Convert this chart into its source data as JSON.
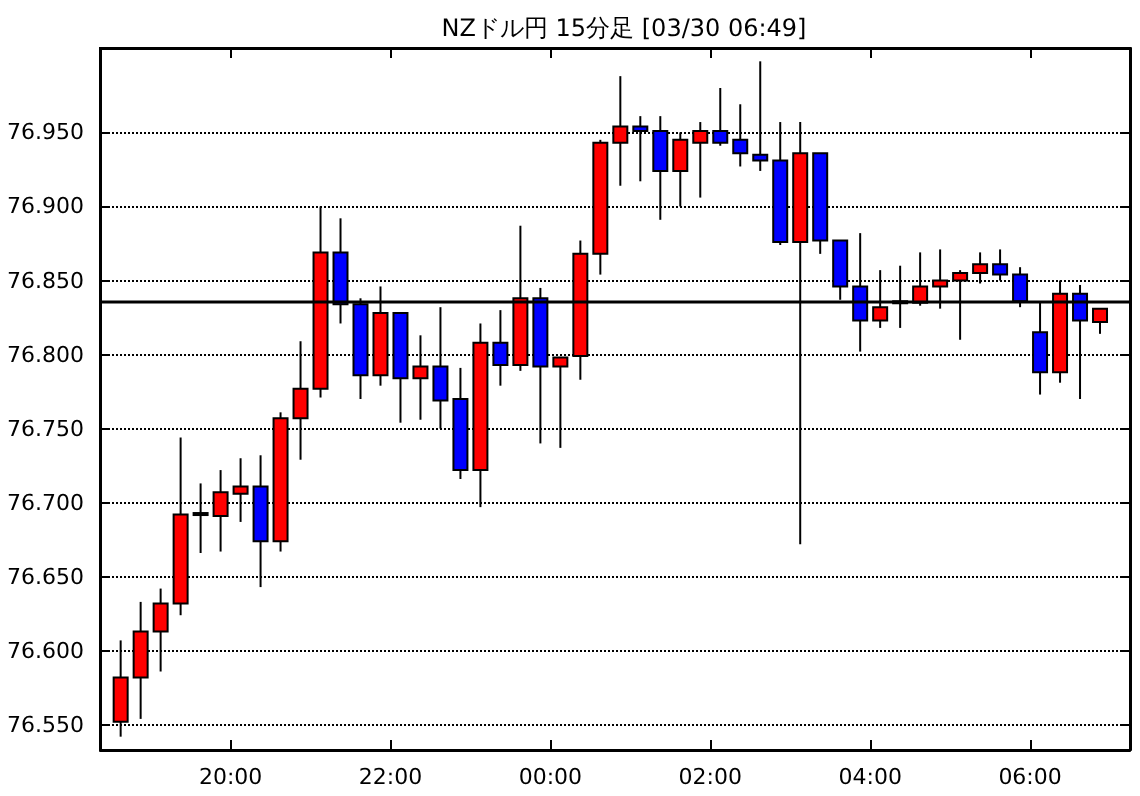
{
  "chart_data": {
    "type": "candlestick",
    "title": "NZドル円 15分足 [03/30 06:49]",
    "x": [
      "--03-29T18:37:30",
      "--03-29T18:52:30",
      "--03-29T19:07:30",
      "--03-29T19:22:30",
      "--03-29T19:37:30",
      "--03-29T19:52:30",
      "--03-29T20:07:30",
      "--03-29T20:22:30",
      "--03-29T20:37:30",
      "--03-29T20:52:30",
      "--03-29T21:07:30",
      "--03-29T21:22:30",
      "--03-29T21:37:30",
      "--03-29T21:52:30",
      "--03-29T22:07:30",
      "--03-29T22:22:30",
      "--03-29T22:37:30",
      "--03-29T22:52:30",
      "--03-29T23:07:30",
      "--03-29T23:22:30",
      "--03-29T23:37:30",
      "--03-29T23:52:30",
      "--03-30T00:07:30",
      "--03-30T00:22:30",
      "--03-30T00:37:30",
      "--03-30T00:52:30",
      "--03-30T01:07:30",
      "--03-30T01:22:30",
      "--03-30T01:37:30",
      "--03-30T01:52:30",
      "--03-30T02:07:30",
      "--03-30T02:22:30",
      "--03-30T02:37:30",
      "--03-30T02:52:30",
      "--03-30T03:07:30",
      "--03-30T03:22:30",
      "--03-30T03:37:30",
      "--03-30T03:52:30",
      "--03-30T04:07:30",
      "--03-30T04:22:30",
      "--03-30T04:37:30",
      "--03-30T04:52:30",
      "--03-30T05:07:30",
      "--03-30T05:22:30",
      "--03-30T05:37:30",
      "--03-30T05:52:30",
      "--03-30T06:07:30",
      "--03-30T06:22:30",
      "--03-30T06:37:30",
      "--03-30T06:52:30"
    ],
    "ohlc": [
      [
        76.552,
        76.607,
        76.542,
        76.582
      ],
      [
        76.582,
        76.633,
        76.554,
        76.613
      ],
      [
        76.613,
        76.642,
        76.586,
        76.632
      ],
      [
        76.632,
        76.744,
        76.624,
        76.692
      ],
      [
        76.692,
        76.713,
        76.666,
        76.693
      ],
      [
        76.691,
        76.722,
        76.667,
        76.707
      ],
      [
        76.706,
        76.73,
        76.687,
        76.711
      ],
      [
        76.711,
        76.732,
        76.643,
        76.674
      ],
      [
        76.674,
        76.761,
        76.667,
        76.757
      ],
      [
        76.757,
        76.809,
        76.729,
        76.777
      ],
      [
        76.777,
        76.9,
        76.771,
        76.869
      ],
      [
        76.869,
        76.892,
        76.821,
        76.834
      ],
      [
        76.834,
        76.838,
        76.77,
        76.786
      ],
      [
        76.786,
        76.846,
        76.779,
        76.828
      ],
      [
        76.828,
        76.828,
        76.754,
        76.784
      ],
      [
        76.784,
        76.813,
        76.756,
        76.792
      ],
      [
        76.792,
        76.832,
        76.75,
        76.769
      ],
      [
        76.77,
        76.791,
        76.716,
        76.722
      ],
      [
        76.722,
        76.821,
        76.697,
        76.808
      ],
      [
        76.808,
        76.83,
        76.779,
        76.793
      ],
      [
        76.793,
        76.887,
        76.789,
        76.838
      ],
      [
        76.838,
        76.845,
        76.74,
        76.792
      ],
      [
        76.792,
        76.798,
        76.737,
        76.798
      ],
      [
        76.799,
        76.877,
        76.783,
        76.868
      ],
      [
        76.868,
        76.945,
        76.854,
        76.943
      ],
      [
        76.943,
        76.988,
        76.914,
        76.954
      ],
      [
        76.954,
        76.961,
        76.917,
        76.951
      ],
      [
        76.951,
        76.961,
        76.891,
        76.924
      ],
      [
        76.924,
        76.95,
        76.9,
        76.945
      ],
      [
        76.943,
        76.957,
        76.906,
        76.951
      ],
      [
        76.951,
        76.98,
        76.941,
        76.943
      ],
      [
        76.945,
        76.969,
        76.927,
        76.936
      ],
      [
        76.935,
        76.998,
        76.924,
        76.931
      ],
      [
        76.931,
        76.957,
        76.874,
        76.876
      ],
      [
        76.876,
        76.957,
        76.672,
        76.936
      ],
      [
        76.936,
        76.936,
        76.868,
        76.877
      ],
      [
        76.877,
        76.877,
        76.837,
        76.846
      ],
      [
        76.846,
        76.882,
        76.802,
        76.823
      ],
      [
        76.823,
        76.857,
        76.818,
        76.832
      ],
      [
        76.836,
        76.86,
        76.818,
        76.836
      ],
      [
        76.835,
        76.869,
        76.833,
        76.846
      ],
      [
        76.846,
        76.871,
        76.831,
        76.85
      ],
      [
        76.85,
        76.857,
        76.81,
        76.855
      ],
      [
        76.855,
        76.869,
        76.848,
        76.861
      ],
      [
        76.861,
        76.871,
        76.85,
        76.854
      ],
      [
        76.854,
        76.859,
        76.832,
        76.836
      ],
      [
        76.815,
        76.836,
        76.773,
        76.788
      ],
      [
        76.788,
        76.85,
        76.781,
        76.841
      ],
      [
        76.841,
        76.847,
        76.77,
        76.823
      ],
      [
        76.822,
        76.831,
        76.814,
        76.831
      ]
    ],
    "colors": [
      "#ff0000",
      "#ff0000",
      "#ff0000",
      "#ff0000",
      "#ff0000",
      "#ff0000",
      "#ff0000",
      "#0000ff",
      "#ff0000",
      "#ff0000",
      "#ff0000",
      "#0000ff",
      "#0000ff",
      "#ff0000",
      "#0000ff",
      "#ff0000",
      "#0000ff",
      "#0000ff",
      "#ff0000",
      "#0000ff",
      "#ff0000",
      "#0000ff",
      "#ff0000",
      "#ff0000",
      "#ff0000",
      "#ff0000",
      "#0000ff",
      "#0000ff",
      "#ff0000",
      "#ff0000",
      "#0000ff",
      "#0000ff",
      "#0000ff",
      "#0000ff",
      "#ff0000",
      "#0000ff",
      "#0000ff",
      "#0000ff",
      "#ff0000",
      "#ff0000",
      "#ff0000",
      "#ff0000",
      "#ff0000",
      "#ff0000",
      "#0000ff",
      "#0000ff",
      "#0000ff",
      "#ff0000",
      "#0000ff",
      "#ff0000"
    ],
    "xlim": [
      "--03-29T18:22",
      "--03-30T07:15"
    ],
    "xticks": [
      {
        "value": "--03-29T20:00",
        "label": "20:00"
      },
      {
        "value": "--03-29T22:00",
        "label": "22:00"
      },
      {
        "value": "--03-30T00:00",
        "label": "00:00"
      },
      {
        "value": "--03-30T02:00",
        "label": "02:00"
      },
      {
        "value": "--03-30T04:00",
        "label": "04:00"
      },
      {
        "value": "--03-30T06:00",
        "label": "06:00"
      }
    ],
    "ylim": [
      76.533,
      77.007
    ],
    "yticks": [
      {
        "value": 76.55,
        "label": "76.550"
      },
      {
        "value": 76.6,
        "label": "76.600"
      },
      {
        "value": 76.65,
        "label": "76.650"
      },
      {
        "value": 76.7,
        "label": "76.700"
      },
      {
        "value": 76.75,
        "label": "76.750"
      },
      {
        "value": 76.8,
        "label": "76.800"
      },
      {
        "value": 76.85,
        "label": "76.850"
      },
      {
        "value": 76.9,
        "label": "76.900"
      },
      {
        "value": 76.95,
        "label": "76.950"
      }
    ],
    "ref_lines": [
      {
        "axis": "y",
        "value": 76.836,
        "color": "#000000"
      }
    ],
    "grid": "y"
  }
}
